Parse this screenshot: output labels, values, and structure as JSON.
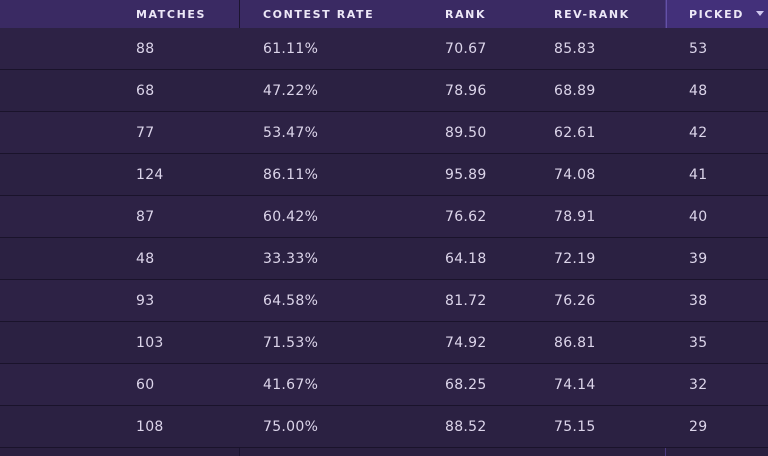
{
  "header": {
    "matches": "MATCHES",
    "contest_rate": "CONTEST RATE",
    "rank": "RANK",
    "rev_rank": "REV-RANK",
    "picked": "PICKED"
  },
  "sort_icon": "caret-down-icon",
  "rows": [
    {
      "matches": "88",
      "contest_rate": "61.11%",
      "rank": "70.67",
      "rev_rank": "85.83",
      "picked": "53"
    },
    {
      "matches": "68",
      "contest_rate": "47.22%",
      "rank": "78.96",
      "rev_rank": "68.89",
      "picked": "48"
    },
    {
      "matches": "77",
      "contest_rate": "53.47%",
      "rank": "89.50",
      "rev_rank": "62.61",
      "picked": "42"
    },
    {
      "matches": "124",
      "contest_rate": "86.11%",
      "rank": "95.89",
      "rev_rank": "74.08",
      "picked": "41"
    },
    {
      "matches": "87",
      "contest_rate": "60.42%",
      "rank": "76.62",
      "rev_rank": "78.91",
      "picked": "40"
    },
    {
      "matches": "48",
      "contest_rate": "33.33%",
      "rank": "64.18",
      "rev_rank": "72.19",
      "picked": "39"
    },
    {
      "matches": "93",
      "contest_rate": "64.58%",
      "rank": "81.72",
      "rev_rank": "76.26",
      "picked": "38"
    },
    {
      "matches": "103",
      "contest_rate": "71.53%",
      "rank": "74.92",
      "rev_rank": "86.81",
      "picked": "35"
    },
    {
      "matches": "60",
      "contest_rate": "41.67%",
      "rank": "68.25",
      "rev_rank": "74.14",
      "picked": "32"
    },
    {
      "matches": "108",
      "contest_rate": "75.00%",
      "rank": "88.52",
      "rev_rank": "75.15",
      "picked": "29"
    }
  ]
}
